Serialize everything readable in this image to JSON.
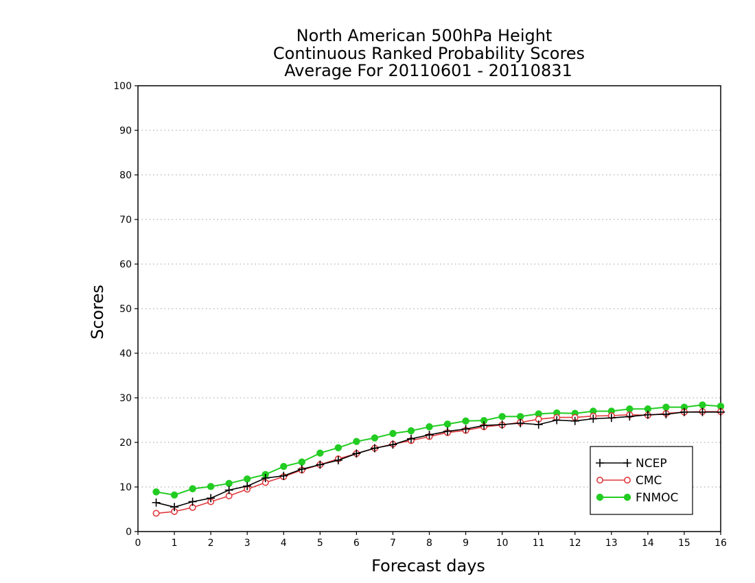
{
  "chart_data": {
    "type": "line",
    "title": [
      "North American 500hPa Height",
      "Continuous Ranked Probability Scores",
      "Average For 20110601 - 20110831"
    ],
    "xlabel": "Forecast days",
    "ylabel": "Scores",
    "xlim": [
      0,
      16
    ],
    "ylim": [
      0,
      100
    ],
    "xticks": [
      "0",
      "1",
      "2",
      "3",
      "4",
      "5",
      "6",
      "7",
      "8",
      "9",
      "10",
      "11",
      "12",
      "13",
      "14",
      "15",
      "16"
    ],
    "yticks": [
      "0",
      "10",
      "20",
      "30",
      "40",
      "50",
      "60",
      "70",
      "80",
      "90",
      "100"
    ],
    "grid": "horizontal dotted",
    "legend_position": "bottom-right",
    "x": [
      0.5,
      1,
      1.5,
      2,
      2.5,
      3,
      3.5,
      4,
      4.5,
      5,
      5.5,
      6,
      6.5,
      7,
      7.5,
      8,
      8.5,
      9,
      9.5,
      10,
      10.5,
      11,
      11.5,
      12,
      12.5,
      13,
      13.5,
      14,
      14.5,
      15,
      15.5,
      16
    ],
    "series": [
      {
        "name": "NCEP",
        "color": "#000000",
        "marker": "plus",
        "values": [
          6.5,
          5.5,
          6.7,
          7.5,
          9.3,
          10.2,
          12.0,
          12.5,
          14.0,
          15.0,
          16.0,
          17.5,
          18.7,
          19.5,
          20.8,
          21.7,
          22.5,
          23.0,
          23.8,
          24.0,
          24.3,
          24.0,
          25.0,
          24.8,
          25.3,
          25.5,
          25.8,
          26.2,
          26.3,
          26.8,
          26.8,
          26.8
        ]
      },
      {
        "name": "CMC",
        "color": "#e0393c",
        "marker": "open-circle",
        "values": [
          4.1,
          4.5,
          5.4,
          6.7,
          8.0,
          9.5,
          11.0,
          12.3,
          13.8,
          15.0,
          16.3,
          17.5,
          18.7,
          19.6,
          20.4,
          21.3,
          22.2,
          22.7,
          23.5,
          23.9,
          24.5,
          25.2,
          25.6,
          25.6,
          25.9,
          26.0,
          26.2,
          26.1,
          26.5,
          26.8,
          26.9,
          26.9
        ]
      },
      {
        "name": "FNMOC",
        "color": "#22cc22",
        "marker": "filled-circle",
        "values": [
          8.9,
          8.2,
          9.6,
          10.1,
          10.8,
          11.8,
          12.8,
          14.6,
          15.6,
          17.6,
          18.8,
          20.2,
          21.0,
          22.0,
          22.6,
          23.5,
          24.1,
          24.8,
          24.9,
          25.8,
          25.8,
          26.4,
          26.6,
          26.5,
          27.0,
          27.0,
          27.5,
          27.5,
          27.9,
          27.9,
          28.4,
          28.1
        ]
      }
    ]
  }
}
